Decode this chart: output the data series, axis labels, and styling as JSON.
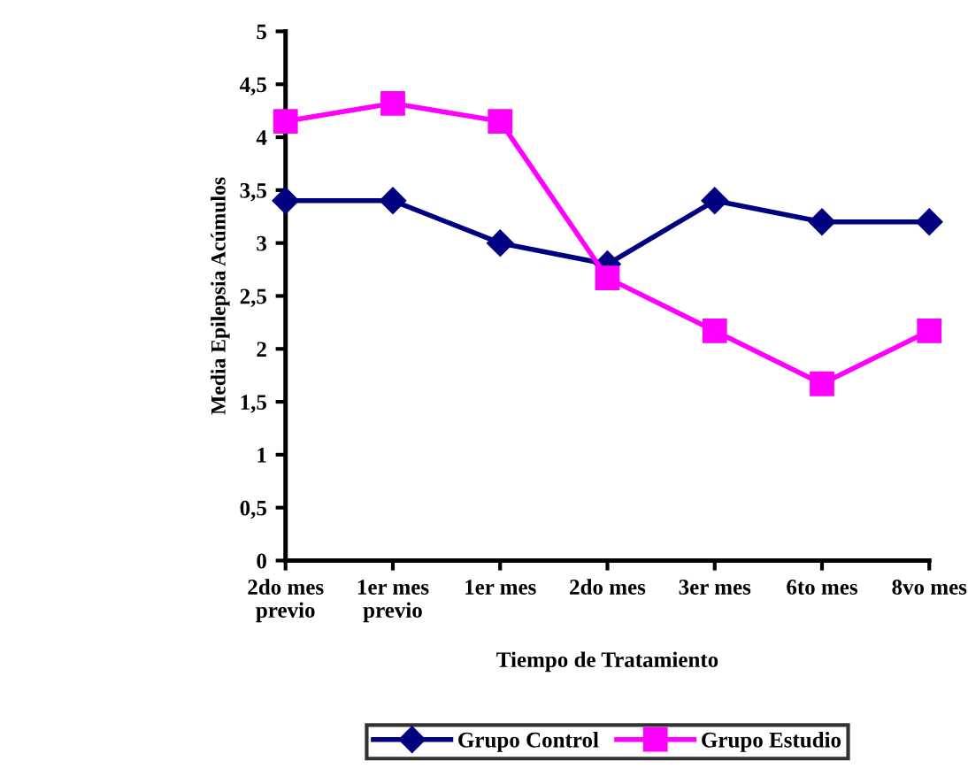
{
  "chart_data": {
    "type": "line",
    "xlabel": "Tiempo de Tratamiento",
    "ylabel": "Media Epilepsia Acúmulos",
    "categories": [
      "2do mes\nprevio",
      "1er mes\nprevio",
      "1er mes",
      "2do mes",
      "3er mes",
      "6to mes",
      "8vo mes"
    ],
    "series": [
      {
        "name": "Grupo Control",
        "color": "#000080",
        "marker": "diamond",
        "values": [
          3.4,
          3.4,
          3.0,
          2.8,
          3.4,
          3.2,
          3.2
        ]
      },
      {
        "name": "Grupo Estudio",
        "color": "#ff00ff",
        "marker": "square",
        "values": [
          4.15,
          4.32,
          4.15,
          2.67,
          2.17,
          1.67,
          2.17
        ]
      }
    ],
    "ylim": [
      0,
      5
    ],
    "yticks": [
      0,
      {
        "value": 0.5,
        "label": "0,5"
      },
      1,
      {
        "value": 1.5,
        "label": "1,5"
      },
      2,
      {
        "value": 2.5,
        "label": "2,5"
      },
      3,
      {
        "value": 3.5,
        "label": "3,5"
      },
      4,
      {
        "value": 4.5,
        "label": "4,5"
      },
      5
    ],
    "grid": false,
    "legend": "bottom",
    "line_style": "solid"
  }
}
